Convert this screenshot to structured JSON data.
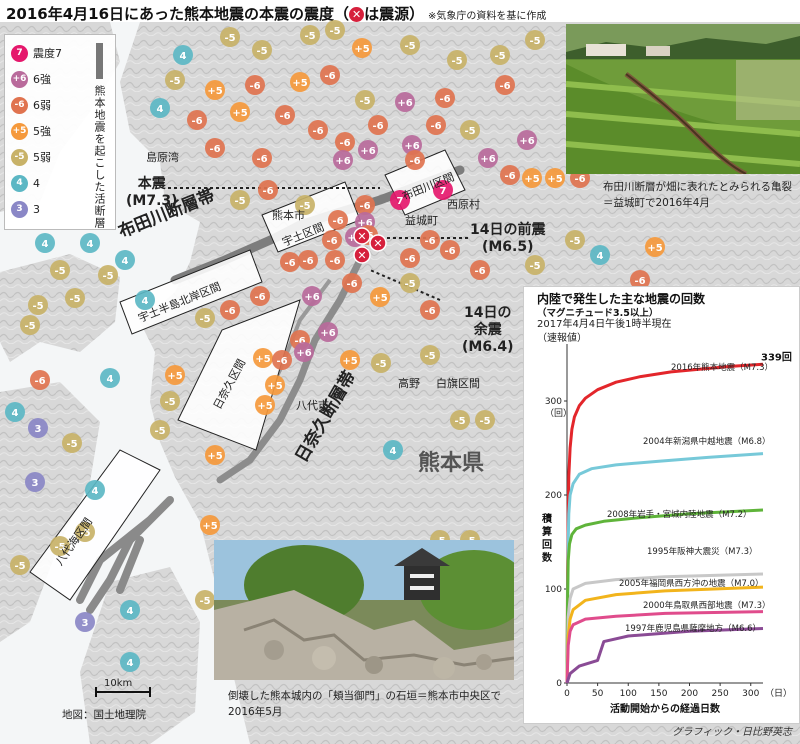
{
  "header": {
    "title_main": "2016年4月16日にあった熊本地震の本震の震度（",
    "title_epi_symbol": "✕",
    "title_end": "は震源）",
    "source_note": "※気象庁の資料を基に作成"
  },
  "legend": {
    "items": [
      {
        "symbol": "7",
        "label": "震度7",
        "color": "#e5186c"
      },
      {
        "symbol": "+6",
        "label": "6強",
        "color": "#b96a9b"
      },
      {
        "symbol": "-6",
        "label": "6弱",
        "color": "#e0734f"
      },
      {
        "symbol": "+5",
        "label": "5強",
        "color": "#f5993c"
      },
      {
        "symbol": "-5",
        "label": "5弱",
        "color": "#c8b268"
      },
      {
        "symbol": "4",
        "label": "4",
        "color": "#5cb7c4"
      },
      {
        "symbol": "3",
        "label": "3",
        "color": "#8a87c6"
      }
    ],
    "fault_label": "熊本地震を起こした活断層"
  },
  "map": {
    "labels": {
      "shimabara_bay": "島原湾",
      "kumamoto_city": "熊本市",
      "kumamoto_pref": "熊本県",
      "mashiki": "益城町",
      "nishihara": "西原村",
      "yatsushiro": "八代市",
      "takano": "高野",
      "shirahata": "白旗区間",
      "futagawa_fault": "布田川断層帯",
      "hinagu_fault": "日奈久断層帯",
      "uto_peninsula": "宇土半島北岸区間",
      "uto_section": "宇土区間",
      "futagawa_section": "布田川区間",
      "hinagu_section": "日奈久区間",
      "yatsushiro_sea": "八代海区間",
      "scale": "10km",
      "basemap": "地図：国土地理院"
    },
    "callouts": {
      "mainshock": "本震",
      "mainshock_mag": "(M7.3)",
      "foreshock": "14日の前震",
      "foreshock_mag": "(M6.5)",
      "aftershock1": "14日の",
      "aftershock2": "余震",
      "aftershock_mag": "(M6.4)"
    },
    "epicenter_color": "#d6203c"
  },
  "photos": {
    "top_caption": "布田川断層が畑に表れたとみられる亀裂＝益城町で2016年4月",
    "bottom_caption": "倒壊した熊本城内の「頬当御門」の石垣＝熊本市中央区で2016年5月"
  },
  "chart_data": {
    "type": "line",
    "title": "内陸で発生した主な地震の回数",
    "subtitle": "（マグニチュード3.5以上）",
    "note": "2017年4月4日午後1時半現在\n（速報値）",
    "xlabel": "活動開始からの経過日数",
    "ylabel": "積算回数",
    "xlim": [
      0,
      320
    ],
    "ylim": [
      0,
      350
    ],
    "x_ticks": [
      "0",
      "50",
      "100",
      "150",
      "200",
      "250",
      "300"
    ],
    "x_unit": "（日）",
    "y_ticks": [
      "0",
      "100",
      "200",
      "300"
    ],
    "y_unit": "（回）",
    "end_label": "339回",
    "series": [
      {
        "name": "2016年熊本地震（M7.3）",
        "color": "#e3262b",
        "x": [
          0,
          1,
          2,
          3,
          5,
          8,
          12,
          20,
          30,
          50,
          80,
          120,
          170,
          220,
          270,
          320
        ],
        "values": [
          0,
          120,
          180,
          220,
          250,
          270,
          283,
          295,
          303,
          312,
          320,
          326,
          331,
          334,
          337,
          339
        ]
      },
      {
        "name": "2004年新潟県中越地震（M6.8）",
        "color": "#77c9d9",
        "x": [
          0,
          1,
          2,
          3,
          5,
          10,
          20,
          40,
          80,
          150,
          230,
          320
        ],
        "values": [
          0,
          90,
          150,
          180,
          200,
          212,
          222,
          228,
          232,
          236,
          240,
          244
        ]
      },
      {
        "name": "2008年岩手・宮城内陸地震（M7.2）",
        "color": "#5fb43a",
        "x": [
          0,
          1,
          2,
          4,
          8,
          15,
          30,
          60,
          120,
          200,
          320
        ],
        "values": [
          0,
          90,
          130,
          148,
          158,
          164,
          168,
          172,
          176,
          180,
          184
        ]
      },
      {
        "name": "1995年阪神大震災（M7.3）",
        "color": "#c8c8c8",
        "x": [
          0,
          2,
          5,
          10,
          30,
          80,
          160,
          320
        ],
        "values": [
          0,
          70,
          90,
          100,
          106,
          110,
          113,
          116
        ]
      },
      {
        "name": "2005年福岡県西方沖の地震（M7.0）",
        "color": "#f2b41c",
        "x": [
          0,
          2,
          5,
          10,
          30,
          80,
          160,
          320
        ],
        "values": [
          0,
          50,
          68,
          78,
          88,
          94,
          98,
          102
        ]
      },
      {
        "name": "2000年鳥取県西部地震（M7.3）",
        "color": "#e04c8c",
        "x": [
          0,
          2,
          5,
          10,
          30,
          80,
          160,
          320
        ],
        "values": [
          0,
          40,
          55,
          62,
          68,
          71,
          74,
          76
        ]
      },
      {
        "name": "1997年鹿児島県薩摩地方（M6.6）",
        "color": "#8a4b95",
        "x": [
          0,
          5,
          20,
          40,
          50,
          60,
          100,
          200,
          320
        ],
        "values": [
          0,
          10,
          18,
          22,
          24,
          44,
          50,
          55,
          58
        ]
      }
    ]
  },
  "credit": "グラフィック・日比野英志"
}
